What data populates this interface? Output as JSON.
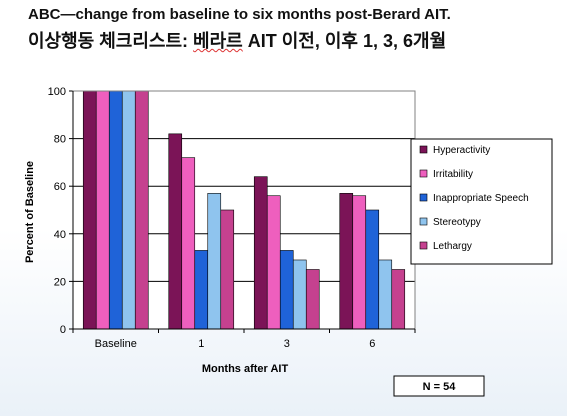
{
  "header": {
    "title_en": "ABC—change from baseline to six months post-Berard AIT.",
    "title_ko_pre": "이상행동 체크리스트:  ",
    "title_ko_ul": "베라르",
    "title_ko_post": " AIT 이전, 이후 1, 3, 6개월"
  },
  "note": {
    "n_label": "N = 54"
  },
  "chart_data": {
    "type": "bar",
    "title": "",
    "xlabel": "Months after AIT",
    "ylabel": "Percent of Baseline",
    "ylim": [
      0,
      100
    ],
    "yticks": [
      0,
      20,
      40,
      60,
      80,
      100
    ],
    "grid": true,
    "legend_position": "right",
    "categories": [
      "Baseline",
      "1",
      "3",
      "6"
    ],
    "series": [
      {
        "name": "Hyperactivity",
        "color": "#7b1457",
        "values": [
          100,
          82,
          64,
          57
        ]
      },
      {
        "name": "Irritability",
        "color": "#ee5fbe",
        "values": [
          100,
          72,
          56,
          56
        ]
      },
      {
        "name": "Inappropriate Speech",
        "color": "#1f63d8",
        "values": [
          100,
          33,
          33,
          50
        ]
      },
      {
        "name": "Stereotypy",
        "color": "#8fc4ee",
        "values": [
          100,
          57,
          29,
          29
        ]
      },
      {
        "name": "Lethargy",
        "color": "#c5418f",
        "values": [
          100,
          50,
          25,
          25
        ]
      }
    ]
  }
}
